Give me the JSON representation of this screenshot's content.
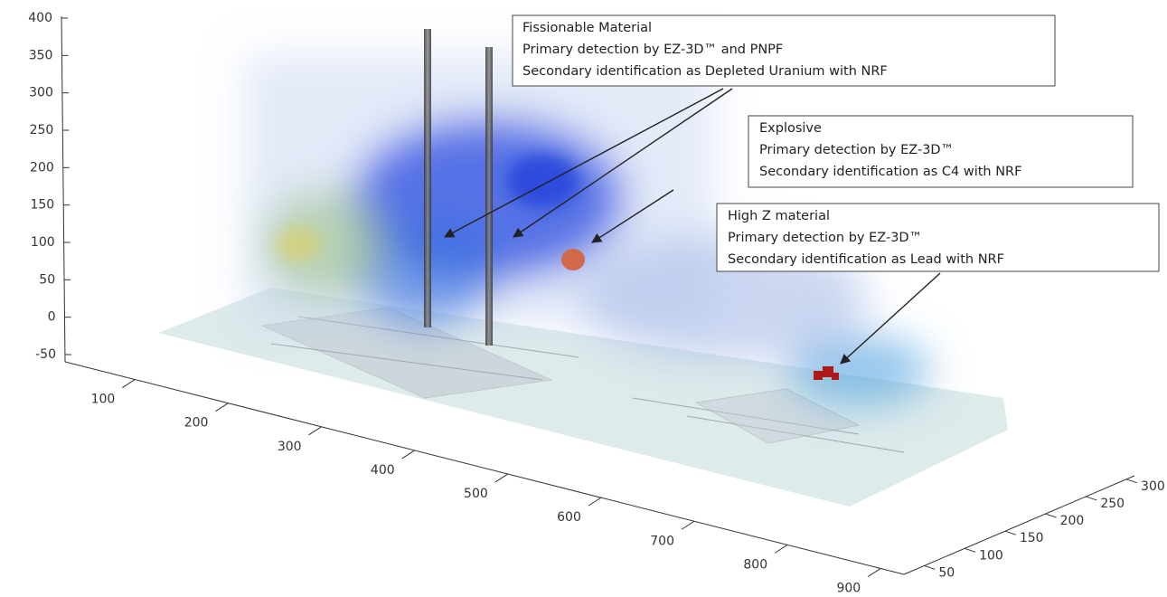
{
  "chart_data": {
    "type": "volume3d",
    "zlim": [
      -50,
      400
    ],
    "zticks": [
      -50,
      0,
      50,
      100,
      150,
      200,
      250,
      300,
      350,
      400
    ],
    "xlim": [
      25,
      925
    ],
    "xticks": [
      100,
      200,
      300,
      400,
      500,
      600,
      700,
      800,
      900
    ],
    "ylim": [
      25,
      310
    ],
    "yticks": [
      50,
      100,
      150,
      200,
      250,
      300
    ],
    "annotations": [
      {
        "lines": [
          "Fissionable Material",
          "Primary detection by EZ-3D™ and PNPF",
          "Secondary identification as Depleted Uranium with NRF"
        ]
      },
      {
        "lines": [
          "Explosive",
          "Primary detection by EZ-3D™",
          "Secondary identification as C4 with NRF"
        ]
      },
      {
        "lines": [
          "High Z material",
          "Primary detection by EZ-3D™",
          "Secondary identification as Lead with NRF"
        ]
      }
    ]
  }
}
